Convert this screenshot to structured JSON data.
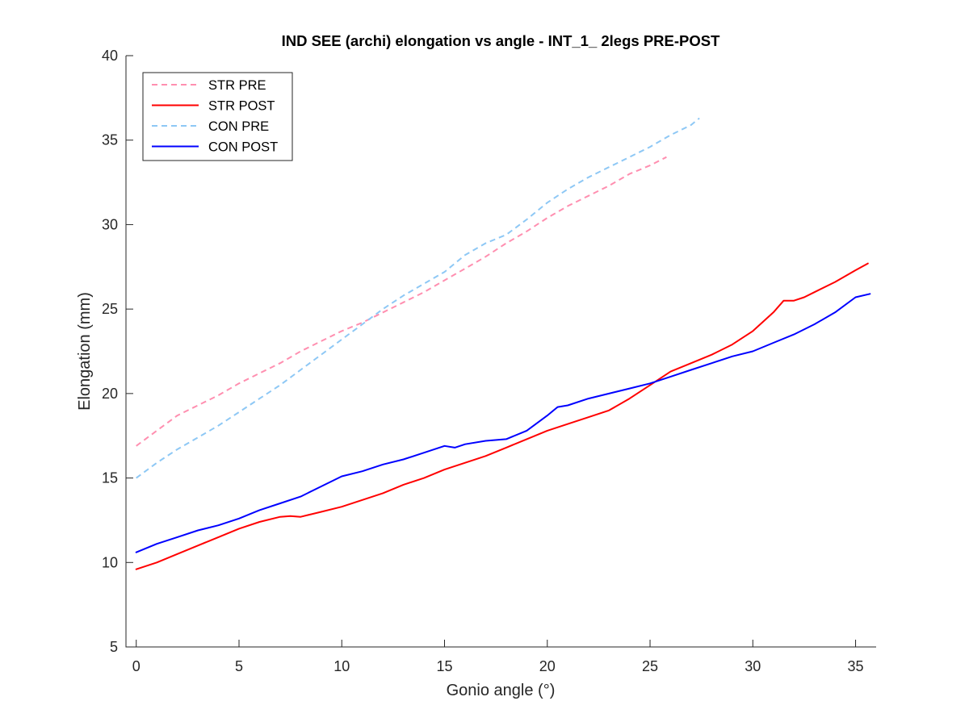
{
  "chart_data": {
    "type": "line",
    "title": "IND SEE (archi) elongation vs angle - INT_1_ 2legs PRE-POST",
    "xlabel": "Gonio angle (°)",
    "ylabel": "Elongation (mm)",
    "xlim": [
      -0.5,
      36
    ],
    "ylim": [
      5,
      40
    ],
    "xticks": [
      0,
      5,
      10,
      15,
      20,
      25,
      30,
      35
    ],
    "yticks": [
      5,
      10,
      15,
      20,
      25,
      30,
      35,
      40
    ],
    "xtick_labels": [
      "0",
      "5",
      "10",
      "15",
      "20",
      "25",
      "30",
      "35"
    ],
    "ytick_labels": [
      "5",
      "10",
      "15",
      "20",
      "25",
      "30",
      "35",
      "40"
    ],
    "grid": false,
    "legend_position": "top-left",
    "series": [
      {
        "name": "STR PRE",
        "color": "#ff8fb0",
        "dash": "dashed",
        "x": [
          0,
          1,
          2,
          3,
          4,
          5,
          6,
          7,
          8,
          9,
          10,
          11,
          12,
          13,
          14,
          15,
          16,
          17,
          18,
          19,
          20,
          21,
          22,
          23,
          24,
          25,
          25.8
        ],
        "y": [
          16.9,
          17.8,
          18.7,
          19.3,
          19.9,
          20.6,
          21.2,
          21.8,
          22.5,
          23.1,
          23.7,
          24.2,
          24.8,
          25.4,
          26.0,
          26.7,
          27.4,
          28.1,
          28.9,
          29.6,
          30.4,
          31.1,
          31.7,
          32.3,
          33.0,
          33.5,
          34.0
        ]
      },
      {
        "name": "STR POST",
        "color": "#ff0000",
        "dash": "solid",
        "x": [
          0,
          1,
          2,
          3,
          4,
          5,
          6,
          7,
          7.5,
          8,
          9,
          10,
          11,
          12,
          13,
          14,
          15,
          16,
          17,
          18,
          19,
          20,
          21,
          22,
          23,
          24,
          25,
          26,
          27,
          28,
          29,
          30,
          31,
          31.5,
          32,
          32.5,
          33,
          34,
          35,
          35.6
        ],
        "y": [
          9.6,
          10.0,
          10.5,
          11.0,
          11.5,
          12.0,
          12.4,
          12.7,
          12.75,
          12.7,
          13.0,
          13.3,
          13.7,
          14.1,
          14.6,
          15.0,
          15.5,
          15.9,
          16.3,
          16.8,
          17.3,
          17.8,
          18.2,
          18.6,
          19.0,
          19.7,
          20.5,
          21.3,
          21.8,
          22.3,
          22.9,
          23.7,
          24.8,
          25.5,
          25.5,
          25.7,
          26.0,
          26.6,
          27.3,
          27.7
        ]
      },
      {
        "name": "CON PRE",
        "color": "#8ec8f5",
        "dash": "dashed",
        "x": [
          0,
          1,
          2,
          3,
          4,
          5,
          6,
          7,
          8,
          9,
          10,
          11,
          12,
          13,
          14,
          15,
          16,
          17,
          18,
          19,
          20,
          21,
          22,
          23,
          24,
          25,
          26,
          27,
          27.4
        ],
        "y": [
          15.0,
          15.9,
          16.7,
          17.4,
          18.1,
          18.9,
          19.7,
          20.5,
          21.4,
          22.3,
          23.2,
          24.1,
          25.0,
          25.8,
          26.5,
          27.2,
          28.2,
          28.9,
          29.4,
          30.3,
          31.3,
          32.1,
          32.8,
          33.4,
          34.0,
          34.6,
          35.3,
          35.9,
          36.3
        ]
      },
      {
        "name": "CON POST",
        "color": "#0000ff",
        "dash": "solid",
        "x": [
          0,
          1,
          2,
          3,
          4,
          5,
          6,
          7,
          8,
          9,
          10,
          11,
          12,
          13,
          14,
          15,
          15.5,
          16,
          17,
          18,
          19,
          20,
          20.5,
          21,
          22,
          23,
          24,
          25,
          26,
          27,
          28,
          29,
          30,
          31,
          32,
          33,
          34,
          35,
          35.7
        ],
        "y": [
          10.6,
          11.1,
          11.5,
          11.9,
          12.2,
          12.6,
          13.1,
          13.5,
          13.9,
          14.5,
          15.1,
          15.4,
          15.8,
          16.1,
          16.5,
          16.9,
          16.8,
          17.0,
          17.2,
          17.3,
          17.8,
          18.7,
          19.2,
          19.3,
          19.7,
          20.0,
          20.3,
          20.6,
          21.0,
          21.4,
          21.8,
          22.2,
          22.5,
          23.0,
          23.5,
          24.1,
          24.8,
          25.7,
          25.9
        ]
      }
    ]
  }
}
